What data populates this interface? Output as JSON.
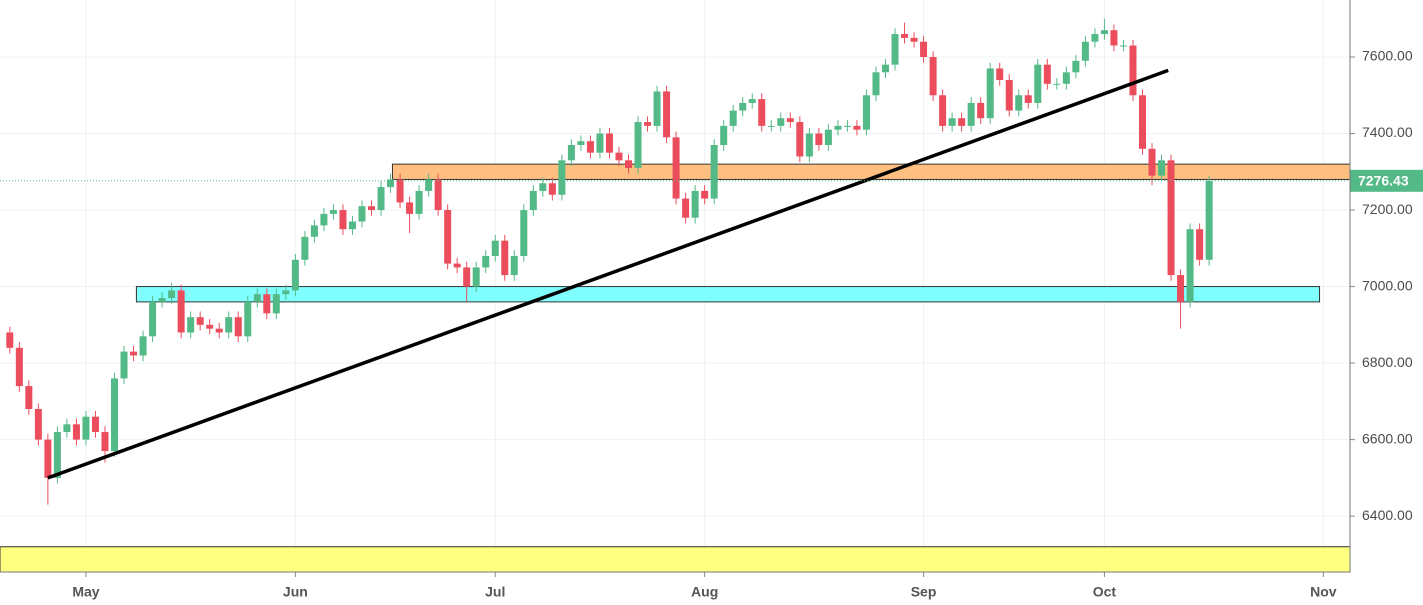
{
  "chart_data": {
    "type": "candlestick",
    "categories": [
      null,
      null,
      null,
      null,
      null,
      null,
      null,
      null,
      "May",
      null,
      null,
      null,
      null,
      null,
      null,
      null,
      null,
      null,
      null,
      null,
      null,
      null,
      null,
      null,
      null,
      null,
      null,
      null,
      null,
      null,
      "Jun",
      null,
      null,
      null,
      null,
      null,
      null,
      null,
      null,
      null,
      null,
      null,
      null,
      null,
      null,
      null,
      null,
      null,
      null,
      null,
      null,
      "Jul",
      null,
      null,
      null,
      null,
      null,
      null,
      null,
      null,
      null,
      null,
      null,
      null,
      null,
      null,
      null,
      null,
      null,
      null,
      null,
      null,
      null,
      "Aug",
      null,
      null,
      null,
      null,
      null,
      null,
      null,
      null,
      null,
      null,
      null,
      null,
      null,
      null,
      null,
      null,
      null,
      null,
      null,
      null,
      null,
      null,
      "Sep",
      null,
      null,
      null,
      null,
      null,
      null,
      null,
      null,
      null,
      null,
      null,
      null,
      null,
      null,
      null,
      null,
      null,
      null,
      "Oct",
      null,
      null,
      null,
      null,
      null,
      null,
      null,
      null,
      null,
      null,
      null,
      null,
      null,
      null,
      null,
      null,
      null,
      null,
      null,
      null,
      null,
      null,
      "Nov",
      null,
      null
    ],
    "open": [
      6880,
      6840,
      6740,
      6680,
      6600,
      6500,
      6620,
      6640,
      6600,
      6660,
      6620,
      6570,
      6760,
      6830,
      6820,
      6870,
      6960,
      6970,
      6990,
      6880,
      6920,
      6900,
      6890,
      6880,
      6920,
      6870,
      6960,
      6980,
      6930,
      6980,
      6990,
      7070,
      7130,
      7160,
      7190,
      7200,
      7150,
      7170,
      7210,
      7200,
      7260,
      7280,
      7220,
      7190,
      7250,
      7280,
      7200,
      7060,
      7050,
      7000,
      7050,
      7080,
      7120,
      7030,
      7080,
      7200,
      7250,
      7270,
      7240,
      7330,
      7370,
      7380,
      7350,
      7400,
      7350,
      7330,
      7310,
      7430,
      7420,
      7510,
      7390,
      7230,
      7180,
      7250,
      7230,
      7370,
      7420,
      7460,
      7480,
      7490,
      7420,
      7420,
      7440,
      7430,
      7340,
      7400,
      7370,
      7410,
      7420,
      7420,
      7410,
      7500,
      7560,
      7580,
      7660,
      7650,
      7640,
      7600,
      7500,
      7420,
      7440,
      7420,
      7480,
      7440,
      7570,
      7540,
      7460,
      7500,
      7480,
      7580,
      7530,
      7530,
      7560,
      7590,
      7640,
      7660,
      7670,
      7630,
      7630,
      7500,
      7360,
      7290,
      7330,
      7030,
      6960,
      7150,
      7070,
      null,
      null,
      null,
      null,
      null,
      null,
      null,
      null,
      null,
      null,
      null,
      null,
      null,
      null
    ],
    "high": [
      6895,
      6855,
      6755,
      6695,
      6615,
      6635,
      6655,
      6655,
      6675,
      6675,
      6635,
      6775,
      6845,
      6845,
      6885,
      6975,
      6985,
      7010,
      7005,
      6935,
      6935,
      6915,
      6905,
      6935,
      6935,
      6975,
      6995,
      6995,
      6995,
      7005,
      7085,
      7145,
      7175,
      7205,
      7215,
      7215,
      7185,
      7225,
      7225,
      7275,
      7295,
      7295,
      7235,
      7265,
      7295,
      7295,
      7215,
      7075,
      7065,
      7065,
      7095,
      7135,
      7135,
      7095,
      7215,
      7265,
      7285,
      7285,
      7345,
      7385,
      7395,
      7395,
      7415,
      7415,
      7365,
      7345,
      7445,
      7445,
      7525,
      7525,
      7405,
      7245,
      7265,
      7265,
      7385,
      7435,
      7475,
      7495,
      7505,
      7505,
      7435,
      7455,
      7455,
      7445,
      7415,
      7415,
      7425,
      7435,
      7435,
      7435,
      7515,
      7575,
      7595,
      7675,
      7690,
      7665,
      7655,
      7615,
      7515,
      7455,
      7455,
      7495,
      7495,
      7585,
      7585,
      7555,
      7515,
      7515,
      7595,
      7595,
      7545,
      7575,
      7605,
      7655,
      7675,
      7700,
      7685,
      7645,
      7645,
      7515,
      7375,
      7345,
      7345,
      7045,
      7165,
      7165,
      7290,
      null,
      null,
      null,
      null,
      null,
      null,
      null,
      null,
      null,
      null,
      null,
      null,
      null,
      null
    ],
    "low": [
      6825,
      6725,
      6665,
      6585,
      6430,
      6485,
      6605,
      6585,
      6585,
      6605,
      6540,
      6555,
      6745,
      6805,
      6805,
      6855,
      6945,
      6955,
      6865,
      6865,
      6885,
      6875,
      6865,
      6865,
      6855,
      6855,
      6945,
      6915,
      6915,
      6965,
      6975,
      7055,
      7115,
      7145,
      7175,
      7135,
      7135,
      7155,
      7185,
      7185,
      7245,
      7205,
      7140,
      7175,
      7235,
      7185,
      7045,
      7035,
      6960,
      6985,
      7035,
      7065,
      7015,
      7015,
      7065,
      7185,
      7235,
      7225,
      7225,
      7315,
      7355,
      7335,
      7335,
      7335,
      7315,
      7295,
      7295,
      7405,
      7405,
      7375,
      7215,
      7165,
      7165,
      7215,
      7215,
      7355,
      7405,
      7445,
      7465,
      7405,
      7405,
      7405,
      7415,
      7325,
      7325,
      7355,
      7355,
      7395,
      7405,
      7395,
      7395,
      7485,
      7545,
      7565,
      7635,
      7625,
      7585,
      7485,
      7405,
      7405,
      7405,
      7405,
      7425,
      7425,
      7525,
      7445,
      7445,
      7465,
      7465,
      7515,
      7515,
      7515,
      7545,
      7575,
      7625,
      7645,
      7615,
      7615,
      7485,
      7345,
      7265,
      7275,
      7015,
      6890,
      6945,
      7055,
      7055,
      null,
      null,
      null,
      null,
      null,
      null,
      null,
      null,
      null,
      null,
      null,
      null,
      null,
      null
    ],
    "close": [
      6840,
      6740,
      6680,
      6600,
      6500,
      6620,
      6640,
      6600,
      6660,
      6620,
      6570,
      6760,
      6830,
      6820,
      6870,
      6960,
      6970,
      6990,
      6880,
      6920,
      6900,
      6890,
      6880,
      6920,
      6870,
      6960,
      6980,
      6930,
      6980,
      6990,
      7070,
      7130,
      7160,
      7190,
      7200,
      7150,
      7170,
      7210,
      7200,
      7260,
      7280,
      7220,
      7190,
      7250,
      7280,
      7200,
      7060,
      7050,
      7000,
      7050,
      7080,
      7120,
      7030,
      7080,
      7200,
      7250,
      7270,
      7240,
      7330,
      7370,
      7380,
      7350,
      7400,
      7350,
      7330,
      7310,
      7430,
      7420,
      7510,
      7390,
      7230,
      7180,
      7250,
      7230,
      7370,
      7420,
      7460,
      7480,
      7490,
      7420,
      7420,
      7440,
      7430,
      7340,
      7400,
      7370,
      7410,
      7420,
      7420,
      7410,
      7500,
      7560,
      7580,
      7660,
      7650,
      7640,
      7600,
      7500,
      7420,
      7440,
      7420,
      7480,
      7440,
      7570,
      7540,
      7460,
      7500,
      7480,
      7580,
      7530,
      7530,
      7560,
      7590,
      7640,
      7660,
      7670,
      7630,
      7630,
      7500,
      7360,
      7290,
      7330,
      7030,
      6960,
      7150,
      7070,
      7276.43,
      null,
      null,
      null,
      null,
      null,
      null,
      null,
      null,
      null,
      null,
      null,
      null,
      null,
      null
    ],
    "up_color": "#53b987",
    "down_color": "#eb4d5c",
    "xlim": [
      -1.03,
      140.8
    ],
    "ylim": [
      6254,
      7749
    ],
    "yticks": [
      {
        "value": 6400,
        "label": "6400.00"
      },
      {
        "value": 6600,
        "label": "6600.00"
      },
      {
        "value": 6800,
        "label": "6800.00"
      },
      {
        "value": 7000,
        "label": "7000.00"
      },
      {
        "value": 7200,
        "label": "7200.00"
      },
      {
        "value": 7400,
        "label": "7400.00"
      },
      {
        "value": 7600,
        "label": "7600.00"
      }
    ],
    "grid": true,
    "zones": [
      {
        "from": 7280,
        "to": 7320,
        "start": 40.2,
        "end": 140.8,
        "color": "#ffbf80"
      },
      {
        "from": 6960,
        "to": 7000,
        "start": 13.3,
        "end": 137.6,
        "color": "#80ffff"
      },
      {
        "from": 6254,
        "to": 6320,
        "start": -1.03,
        "end": 140.8,
        "color": "#ffff80"
      }
    ],
    "trendline": {
      "x": [
        4,
        121.7
      ],
      "y": [
        6500,
        7565
      ],
      "color": "#000000"
    }
  }
}
